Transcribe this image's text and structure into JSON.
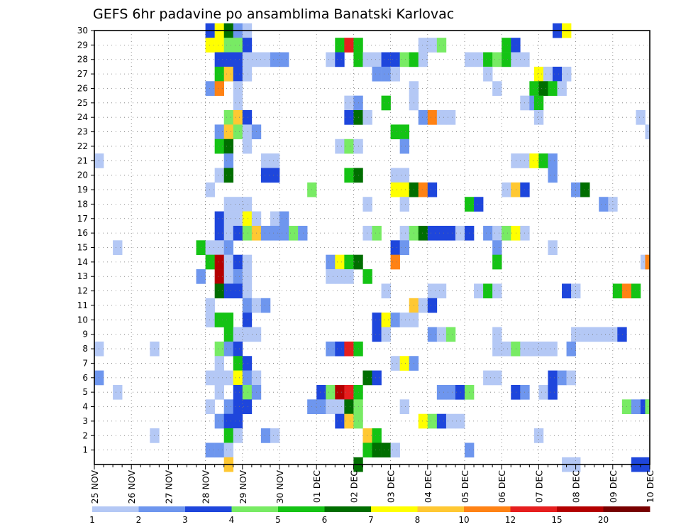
{
  "chart_data": {
    "type": "heatmap",
    "title": "GEFS 6hr padavine po ansamblima Banatski Karlovac",
    "xlabel": "",
    "ylabel": "",
    "x_ticks": [
      "25 NOV",
      "26 NOV",
      "27 NOV",
      "28 NOV",
      "29 NOV",
      "30 NOV",
      "01 DEC",
      "02 DEC",
      "03 DEC",
      "04 DEC",
      "05 DEC",
      "06 DEC",
      "07 DEC",
      "08 DEC",
      "09 DEC",
      "10 DEC"
    ],
    "x_steps_per_day": 4,
    "x_range_steps": [
      0,
      60
    ],
    "members": [
      1,
      2,
      3,
      4,
      5,
      6,
      7,
      8,
      9,
      10,
      11,
      12,
      13,
      14,
      15,
      16,
      17,
      18,
      19,
      20,
      21,
      22,
      23,
      24,
      25,
      26,
      27,
      28,
      29,
      30
    ],
    "ylim": [
      0,
      30
    ],
    "grid": true,
    "levels": [
      1,
      2,
      3,
      4,
      5,
      6,
      7,
      8,
      10,
      12,
      15,
      20
    ],
    "level_colors": [
      "#b4c8f5",
      "#6e96ee",
      "#1e46dc",
      "#78eb64",
      "#14c314",
      "#006e00",
      "#ffff00",
      "#ffc832",
      "#ff8214",
      "#e61e1e",
      "#b40000",
      "#780000"
    ],
    "legend_position": "bottom",
    "cells": [
      [
        30,
        12.5,
        3
      ],
      [
        30,
        13.5,
        7
      ],
      [
        30,
        14.5,
        6
      ],
      [
        30,
        15.5,
        2
      ],
      [
        30,
        16.5,
        1
      ],
      [
        30,
        50,
        3
      ],
      [
        30,
        51,
        7
      ],
      [
        29,
        12.5,
        7
      ],
      [
        29,
        13.5,
        7
      ],
      [
        29,
        14.5,
        4
      ],
      [
        29,
        15.5,
        4
      ],
      [
        29,
        16.5,
        3
      ],
      [
        29,
        26.5,
        5
      ],
      [
        29,
        27.5,
        10
      ],
      [
        29,
        28.5,
        5
      ],
      [
        29,
        35.5,
        1
      ],
      [
        29,
        36.5,
        1
      ],
      [
        29,
        37.5,
        4
      ],
      [
        29,
        44.5,
        5
      ],
      [
        29,
        45.5,
        3
      ],
      [
        28,
        13.5,
        3
      ],
      [
        28,
        14.5,
        3
      ],
      [
        28,
        15.5,
        3
      ],
      [
        28,
        16.5,
        1
      ],
      [
        28,
        17.5,
        1
      ],
      [
        28,
        18.5,
        1
      ],
      [
        28,
        19.5,
        2
      ],
      [
        28,
        20.5,
        2
      ],
      [
        28,
        25.5,
        1
      ],
      [
        28,
        26.5,
        3
      ],
      [
        28,
        28.5,
        5
      ],
      [
        28,
        29.5,
        1
      ],
      [
        28,
        30.5,
        1
      ],
      [
        28,
        31.5,
        3
      ],
      [
        28,
        32.5,
        3
      ],
      [
        28,
        33.5,
        4
      ],
      [
        28,
        34.5,
        5
      ],
      [
        28,
        35.5,
        1
      ],
      [
        28,
        40.5,
        1
      ],
      [
        28,
        41.5,
        1
      ],
      [
        28,
        42.5,
        5
      ],
      [
        28,
        43.5,
        4
      ],
      [
        28,
        44.5,
        5
      ],
      [
        28,
        45.5,
        1
      ],
      [
        28,
        46.5,
        1
      ],
      [
        27,
        13.5,
        5
      ],
      [
        27,
        14.5,
        8
      ],
      [
        27,
        15.5,
        3
      ],
      [
        27,
        16.5,
        1
      ],
      [
        27,
        30.5,
        2
      ],
      [
        27,
        31.5,
        2
      ],
      [
        27,
        32.5,
        1
      ],
      [
        27,
        42.5,
        1
      ],
      [
        27,
        48,
        7
      ],
      [
        27,
        49,
        1
      ],
      [
        27,
        50,
        3
      ],
      [
        27,
        51,
        1
      ],
      [
        26,
        12.5,
        2
      ],
      [
        26,
        13.5,
        9
      ],
      [
        26,
        15.5,
        1
      ],
      [
        26,
        34.5,
        1
      ],
      [
        26,
        43.5,
        1
      ],
      [
        26,
        47.5,
        5
      ],
      [
        26,
        48.5,
        6
      ],
      [
        26,
        49.5,
        5
      ],
      [
        26,
        50.5,
        1
      ],
      [
        25,
        15.5,
        1
      ],
      [
        25,
        27.5,
        1
      ],
      [
        25,
        28.5,
        2
      ],
      [
        25,
        31.5,
        5
      ],
      [
        25,
        34.5,
        1
      ],
      [
        25,
        46.5,
        1
      ],
      [
        25,
        47.5,
        2
      ],
      [
        25,
        48,
        5
      ],
      [
        24,
        14.5,
        4
      ],
      [
        24,
        15.5,
        8
      ],
      [
        24,
        16.5,
        3
      ],
      [
        24,
        27.5,
        3
      ],
      [
        24,
        28.5,
        6
      ],
      [
        24,
        29.5,
        1
      ],
      [
        24,
        35.5,
        2
      ],
      [
        24,
        36.5,
        9
      ],
      [
        24,
        37.5,
        1
      ],
      [
        24,
        38.5,
        1
      ],
      [
        24,
        48,
        1
      ],
      [
        24,
        59,
        1
      ],
      [
        23,
        13.5,
        2
      ],
      [
        23,
        14.5,
        8
      ],
      [
        23,
        15.5,
        4
      ],
      [
        23,
        16.5,
        1
      ],
      [
        23,
        17.5,
        2
      ],
      [
        23,
        32.5,
        5
      ],
      [
        23,
        33.5,
        5
      ],
      [
        23,
        60,
        1
      ],
      [
        22,
        13.5,
        5
      ],
      [
        22,
        14.5,
        6
      ],
      [
        22,
        16.5,
        1
      ],
      [
        22,
        26.5,
        1
      ],
      [
        22,
        27.5,
        4
      ],
      [
        22,
        28.5,
        1
      ],
      [
        22,
        33.5,
        2
      ],
      [
        21,
        0.5,
        1
      ],
      [
        21,
        14.5,
        2
      ],
      [
        21,
        18.5,
        1
      ],
      [
        21,
        19.5,
        1
      ],
      [
        21,
        45.5,
        1
      ],
      [
        21,
        46.5,
        1
      ],
      [
        21,
        47.5,
        7
      ],
      [
        21,
        48.5,
        5
      ],
      [
        21,
        49.5,
        2
      ],
      [
        20,
        13.5,
        1
      ],
      [
        20,
        14.5,
        6
      ],
      [
        20,
        18.5,
        3
      ],
      [
        20,
        19.5,
        3
      ],
      [
        20,
        27.5,
        5
      ],
      [
        20,
        28.5,
        6
      ],
      [
        20,
        32.5,
        1
      ],
      [
        20,
        33.5,
        1
      ],
      [
        20,
        49.5,
        2
      ],
      [
        19,
        12.5,
        1
      ],
      [
        19,
        23.5,
        4
      ],
      [
        19,
        32.5,
        7
      ],
      [
        19,
        33.5,
        7
      ],
      [
        19,
        34.5,
        6
      ],
      [
        19,
        35.5,
        9
      ],
      [
        19,
        36.5,
        3
      ],
      [
        19,
        44.5,
        1
      ],
      [
        19,
        45.5,
        8
      ],
      [
        19,
        46.5,
        3
      ],
      [
        19,
        52,
        2
      ],
      [
        19,
        53,
        6
      ],
      [
        18,
        14.5,
        1
      ],
      [
        18,
        15.5,
        1
      ],
      [
        18,
        16.5,
        1
      ],
      [
        18,
        29.5,
        1
      ],
      [
        18,
        33.5,
        1
      ],
      [
        18,
        40.5,
        5
      ],
      [
        18,
        41.5,
        3
      ],
      [
        18,
        55,
        2
      ],
      [
        18,
        56,
        1
      ],
      [
        17,
        13.5,
        3
      ],
      [
        17,
        14.5,
        1
      ],
      [
        17,
        15.5,
        1
      ],
      [
        17,
        16.5,
        7
      ],
      [
        17,
        17.5,
        1
      ],
      [
        17,
        19.5,
        1
      ],
      [
        17,
        20.5,
        2
      ],
      [
        16,
        13.5,
        3
      ],
      [
        16,
        14.5,
        1
      ],
      [
        16,
        15.5,
        3
      ],
      [
        16,
        16.5,
        4
      ],
      [
        16,
        17.5,
        8
      ],
      [
        16,
        18.5,
        2
      ],
      [
        16,
        19.5,
        2
      ],
      [
        16,
        20.5,
        2
      ],
      [
        16,
        21.5,
        4
      ],
      [
        16,
        22.5,
        2
      ],
      [
        16,
        29.5,
        1
      ],
      [
        16,
        30.5,
        4
      ],
      [
        16,
        33.5,
        1
      ],
      [
        16,
        34.5,
        4
      ],
      [
        16,
        35.5,
        6
      ],
      [
        16,
        36.5,
        3
      ],
      [
        16,
        37.5,
        3
      ],
      [
        16,
        38.5,
        3
      ],
      [
        16,
        39.5,
        1
      ],
      [
        16,
        40.5,
        3
      ],
      [
        16,
        42.5,
        2
      ],
      [
        16,
        43.5,
        1
      ],
      [
        16,
        44.5,
        4
      ],
      [
        16,
        45.5,
        7
      ],
      [
        16,
        46.5,
        1
      ],
      [
        15,
        2.5,
        1
      ],
      [
        15,
        11.5,
        5
      ],
      [
        15,
        12.5,
        1
      ],
      [
        15,
        13.5,
        1
      ],
      [
        15,
        14.5,
        2
      ],
      [
        15,
        32.5,
        3
      ],
      [
        15,
        33.5,
        2
      ],
      [
        15,
        43.5,
        2
      ],
      [
        15,
        49.5,
        1
      ],
      [
        14,
        12.5,
        5
      ],
      [
        14,
        13.5,
        11
      ],
      [
        14,
        14.5,
        1
      ],
      [
        14,
        15.5,
        3
      ],
      [
        14,
        16.5,
        1
      ],
      [
        14,
        25.5,
        2
      ],
      [
        14,
        26.5,
        7
      ],
      [
        14,
        27.5,
        5
      ],
      [
        14,
        28.5,
        6
      ],
      [
        14,
        32.5,
        9
      ],
      [
        14,
        43.5,
        5
      ],
      [
        14,
        59.5,
        1
      ],
      [
        14,
        60,
        9
      ],
      [
        13,
        11.5,
        2
      ],
      [
        13,
        13.5,
        11
      ],
      [
        13,
        14.5,
        1
      ],
      [
        13,
        15.5,
        2
      ],
      [
        13,
        16.5,
        1
      ],
      [
        13,
        25.5,
        1
      ],
      [
        13,
        26.5,
        1
      ],
      [
        13,
        27.5,
        1
      ],
      [
        13,
        29.5,
        5
      ],
      [
        12,
        13.5,
        6
      ],
      [
        12,
        14.5,
        3
      ],
      [
        12,
        15.5,
        3
      ],
      [
        12,
        16.5,
        1
      ],
      [
        12,
        31.5,
        1
      ],
      [
        12,
        36.5,
        1
      ],
      [
        12,
        37.5,
        1
      ],
      [
        12,
        41.5,
        1
      ],
      [
        12,
        42.5,
        5
      ],
      [
        12,
        43.5,
        1
      ],
      [
        12,
        51,
        3
      ],
      [
        12,
        52,
        1
      ],
      [
        12,
        56.5,
        5
      ],
      [
        12,
        57.5,
        9
      ],
      [
        12,
        58.5,
        5
      ],
      [
        11,
        12.5,
        1
      ],
      [
        11,
        16.5,
        2
      ],
      [
        11,
        17.5,
        1
      ],
      [
        11,
        18.5,
        2
      ],
      [
        11,
        34.5,
        8
      ],
      [
        11,
        35.5,
        1
      ],
      [
        11,
        36.5,
        3
      ],
      [
        10,
        12.5,
        1
      ],
      [
        10,
        13.5,
        5
      ],
      [
        10,
        14.5,
        5
      ],
      [
        10,
        16.5,
        3
      ],
      [
        10,
        30.5,
        3
      ],
      [
        10,
        31.5,
        7
      ],
      [
        10,
        32.5,
        2
      ],
      [
        10,
        33.5,
        1
      ],
      [
        10,
        34.5,
        1
      ],
      [
        9,
        14.5,
        5
      ],
      [
        9,
        15.5,
        1
      ],
      [
        9,
        16.5,
        1
      ],
      [
        9,
        17.5,
        1
      ],
      [
        9,
        30.5,
        3
      ],
      [
        9,
        31.5,
        1
      ],
      [
        9,
        36.5,
        2
      ],
      [
        9,
        37.5,
        1
      ],
      [
        9,
        38.5,
        4
      ],
      [
        9,
        43.5,
        1
      ],
      [
        9,
        52,
        1
      ],
      [
        9,
        53,
        1
      ],
      [
        9,
        54,
        1
      ],
      [
        9,
        55,
        1
      ],
      [
        9,
        56,
        1
      ],
      [
        9,
        57,
        3
      ],
      [
        8,
        0.5,
        1
      ],
      [
        8,
        6.5,
        1
      ],
      [
        8,
        13.5,
        4
      ],
      [
        8,
        14.5,
        2
      ],
      [
        8,
        15.5,
        3
      ],
      [
        8,
        25.5,
        2
      ],
      [
        8,
        26.5,
        3
      ],
      [
        8,
        27.5,
        10
      ],
      [
        8,
        28.5,
        5
      ],
      [
        8,
        43.5,
        1
      ],
      [
        8,
        44.5,
        1
      ],
      [
        8,
        45.5,
        4
      ],
      [
        8,
        46.5,
        1
      ],
      [
        8,
        47.5,
        1
      ],
      [
        8,
        48.5,
        1
      ],
      [
        8,
        49.5,
        1
      ],
      [
        8,
        51.5,
        2
      ],
      [
        7,
        13.5,
        1
      ],
      [
        7,
        15.5,
        5
      ],
      [
        7,
        16.5,
        3
      ],
      [
        7,
        32.5,
        1
      ],
      [
        7,
        33.5,
        7
      ],
      [
        7,
        34.5,
        2
      ],
      [
        6,
        0.5,
        2
      ],
      [
        6,
        12.5,
        1
      ],
      [
        6,
        13.5,
        1
      ],
      [
        6,
        14.5,
        1
      ],
      [
        6,
        15.5,
        7
      ],
      [
        6,
        16.5,
        2
      ],
      [
        6,
        17.5,
        1
      ],
      [
        6,
        29.5,
        6
      ],
      [
        6,
        30.5,
        3
      ],
      [
        6,
        42.5,
        1
      ],
      [
        6,
        43.5,
        1
      ],
      [
        6,
        49.5,
        3
      ],
      [
        6,
        50.5,
        2
      ],
      [
        6,
        51.5,
        1
      ],
      [
        5,
        2.5,
        1
      ],
      [
        5,
        13.5,
        1
      ],
      [
        5,
        15.5,
        3
      ],
      [
        5,
        16.5,
        4
      ],
      [
        5,
        17.5,
        2
      ],
      [
        5,
        24.5,
        3
      ],
      [
        5,
        25.5,
        4
      ],
      [
        5,
        26.5,
        11
      ],
      [
        5,
        27.5,
        10
      ],
      [
        5,
        28.5,
        5
      ],
      [
        5,
        37.5,
        2
      ],
      [
        5,
        38.5,
        2
      ],
      [
        5,
        39.5,
        3
      ],
      [
        5,
        40.5,
        4
      ],
      [
        5,
        45.5,
        3
      ],
      [
        5,
        46.5,
        2
      ],
      [
        5,
        48.5,
        1
      ],
      [
        5,
        49.5,
        3
      ],
      [
        4,
        12.5,
        1
      ],
      [
        4,
        14.5,
        2
      ],
      [
        4,
        15.5,
        3
      ],
      [
        4,
        16.5,
        3
      ],
      [
        4,
        23.5,
        2
      ],
      [
        4,
        24.5,
        2
      ],
      [
        4,
        25.5,
        1
      ],
      [
        4,
        26.5,
        1
      ],
      [
        4,
        27.5,
        6
      ],
      [
        4,
        28.5,
        4
      ],
      [
        4,
        33.5,
        1
      ],
      [
        4,
        57.5,
        4
      ],
      [
        4,
        58.5,
        2
      ],
      [
        4,
        59.5,
        3
      ],
      [
        4,
        60,
        4
      ],
      [
        3,
        13.5,
        2
      ],
      [
        3,
        14.5,
        3
      ],
      [
        3,
        15.5,
        3
      ],
      [
        3,
        26.5,
        3
      ],
      [
        3,
        27.5,
        8
      ],
      [
        3,
        28.5,
        4
      ],
      [
        3,
        35.5,
        7
      ],
      [
        3,
        36.5,
        4
      ],
      [
        3,
        37.5,
        3
      ],
      [
        3,
        38.5,
        1
      ],
      [
        3,
        39.5,
        1
      ],
      [
        2,
        6.5,
        1
      ],
      [
        2,
        14.5,
        5
      ],
      [
        2,
        15.5,
        1
      ],
      [
        2,
        18.5,
        2
      ],
      [
        2,
        19.5,
        1
      ],
      [
        2,
        29.5,
        8
      ],
      [
        2,
        30.5,
        5
      ],
      [
        2,
        48,
        1
      ],
      [
        1,
        12.5,
        2
      ],
      [
        1,
        13.5,
        2
      ],
      [
        1,
        14.5,
        1
      ],
      [
        1,
        29.5,
        5
      ],
      [
        1,
        30.5,
        6
      ],
      [
        1,
        31.5,
        6
      ],
      [
        1,
        32.5,
        1
      ],
      [
        1,
        40.5,
        2
      ],
      [
        0,
        14.5,
        8
      ],
      [
        0,
        28.5,
        6
      ],
      [
        0,
        51,
        1
      ],
      [
        0,
        52,
        1
      ],
      [
        0,
        58.5,
        3
      ],
      [
        0,
        59.5,
        3
      ]
    ]
  }
}
